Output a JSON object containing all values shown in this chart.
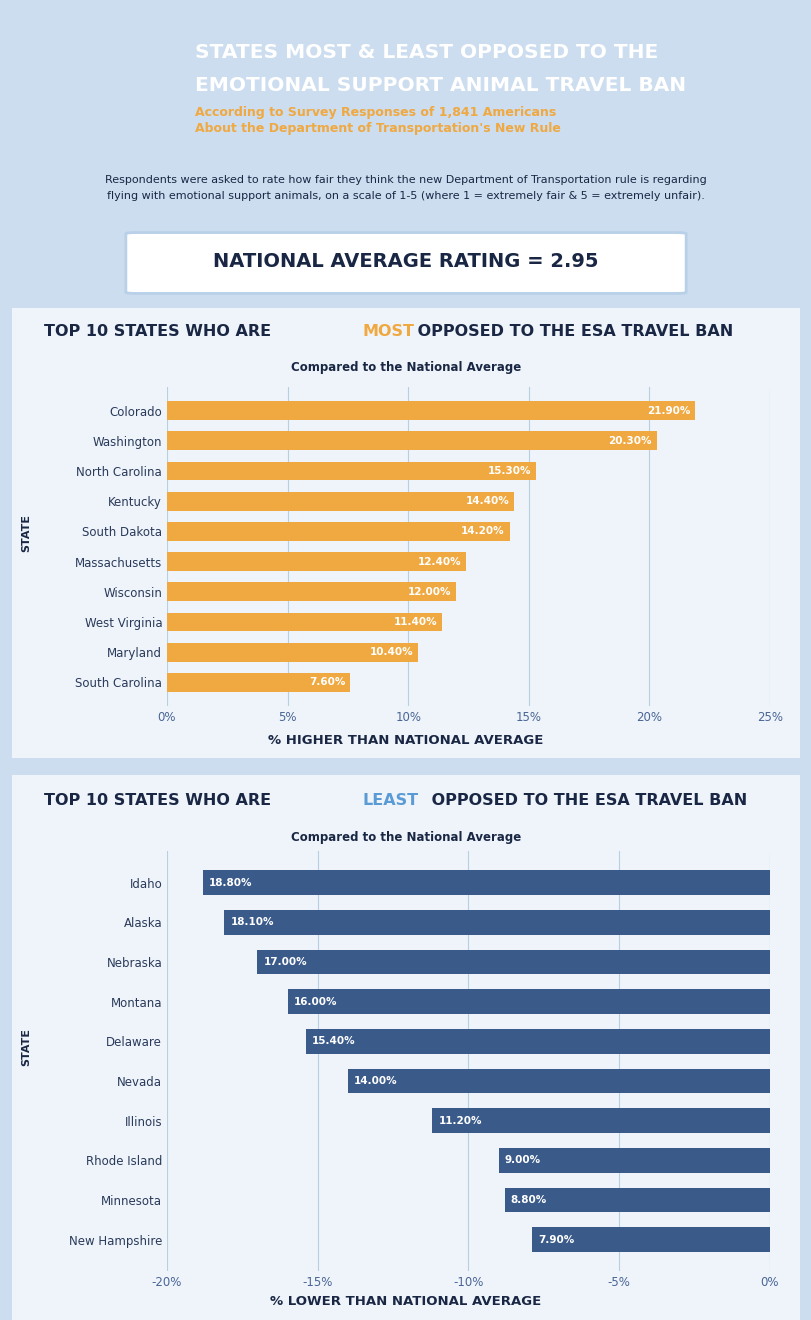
{
  "header_bg": "#4a6595",
  "header_title_line1": "STATES MOST & LEAST OPPOSED TO THE",
  "header_title_line2": "EMOTIONAL SUPPORT ANIMAL TRAVEL BAN",
  "header_subtitle_line1": "According to Survey Responses of 1,841 Americans",
  "header_subtitle_line2": "About the Department of Transportation's New Rule",
  "body_bg": "#ccddef",
  "description": "Respondents were asked to rate how fair they think the new Department of Transportation rule is regarding\nflying with emotional support animals, on a scale of 1-5 (where 1 = extremely fair & 5 = extremely unfair).",
  "national_avg_label": "NATIONAL AVERAGE RATING = 2.95",
  "chart1_xlabel": "% HIGHER THAN NATIONAL AVERAGE",
  "chart1_subtitle": "Compared to the National Average",
  "chart1_bg": "#eef4fa",
  "chart1_bar_color": "#f0a840",
  "chart1_states": [
    "Colorado",
    "Washington",
    "North Carolina",
    "Kentucky",
    "South Dakota",
    "Massachusetts",
    "Wisconsin",
    "West Virginia",
    "Maryland",
    "South Carolina"
  ],
  "chart1_values": [
    21.9,
    20.3,
    15.3,
    14.4,
    14.2,
    12.4,
    12.0,
    11.4,
    10.4,
    7.6
  ],
  "chart1_xlim": [
    0,
    25
  ],
  "chart1_xticks": [
    0,
    5,
    10,
    15,
    20,
    25
  ],
  "chart1_xtick_labels": [
    "0%",
    "5%",
    "10%",
    "15%",
    "20%",
    "25%"
  ],
  "chart2_xlabel": "% LOWER THAN NATIONAL AVERAGE",
  "chart2_subtitle": "Compared to the National Average",
  "chart2_bg": "#eef4fa",
  "chart2_bar_color": "#3a5a8a",
  "chart2_states": [
    "Idaho",
    "Alaska",
    "Nebraska",
    "Montana",
    "Delaware",
    "Nevada",
    "Illinois",
    "Rhode Island",
    "Minnesota",
    "New Hampshire"
  ],
  "chart2_values": [
    -18.8,
    -18.1,
    -17.0,
    -16.0,
    -15.4,
    -14.0,
    -11.2,
    -9.0,
    -8.8,
    -7.9
  ],
  "chart2_xlim": [
    -20,
    0
  ],
  "chart2_xticks": [
    -20,
    -15,
    -10,
    -5,
    0
  ],
  "chart2_xtick_labels": [
    "-20%",
    "-15%",
    "-10%",
    "-5%",
    "0%"
  ],
  "text_dark": "#1a2744",
  "text_white": "#ffffff",
  "text_orange": "#f0a840",
  "text_blue_highlight": "#5b9bd5",
  "grid_color": "#b8cfe0",
  "tick_label_color": "#4a6595",
  "state_label_color": "#2a3a5a"
}
